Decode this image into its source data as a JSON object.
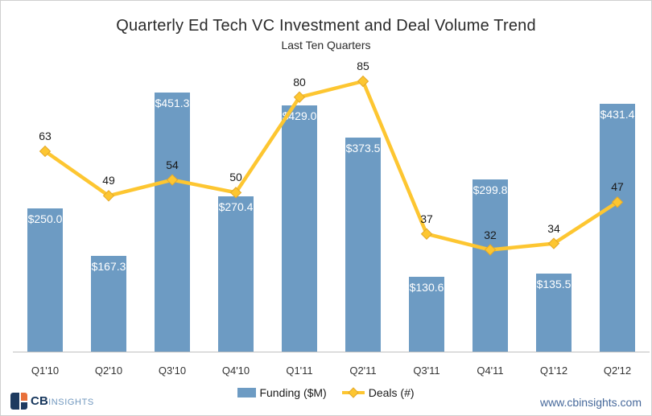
{
  "chart_data": {
    "type": "combo-bar-line",
    "title": "Quarterly Ed Tech VC Investment and Deal Volume Trend",
    "subtitle": "Last Ten Quarters",
    "categories": [
      "Q1'10",
      "Q2'10",
      "Q3'10",
      "Q4'10",
      "Q1'11",
      "Q2'11",
      "Q3'11",
      "Q4'11",
      "Q1'12",
      "Q2'12"
    ],
    "series": [
      {
        "name": "Funding ($M)",
        "type": "bar",
        "color": "#6d9bc3",
        "values": [
          250.0,
          167.3,
          451.3,
          270.4,
          429.0,
          373.5,
          130.6,
          299.8,
          135.5,
          431.4
        ],
        "labels": [
          "$250.0",
          "$167.3",
          "$451.3",
          "$270.4",
          "$429.0",
          "$373.5",
          "$130.6",
          "$299.8",
          "$135.5",
          "$431.4"
        ],
        "label_color": "#ffffff"
      },
      {
        "name": "Deals (#)",
        "type": "line",
        "color": "#fdc631",
        "marker": "diamond",
        "marker_edge_color": "#e3a82a",
        "values": [
          63,
          49,
          54,
          50,
          80,
          85,
          37,
          32,
          34,
          47
        ],
        "label_color": "#1a1a1a"
      }
    ],
    "axis_left": {
      "label": "Funding ($M)",
      "range": [
        0,
        500
      ],
      "visible": false
    },
    "axis_right": {
      "label": "Deals (#)",
      "range": [
        0,
        90
      ],
      "visible": false
    },
    "grid": false,
    "legend_position": "bottom",
    "axis_line_color": "#bfbfbf"
  },
  "footer": {
    "logo_cb": "CB",
    "logo_insights": "INSIGHTS",
    "url": "www.cbinsights.com",
    "logo_navy": "#1e3a5f",
    "logo_orange": "#e8703a"
  }
}
